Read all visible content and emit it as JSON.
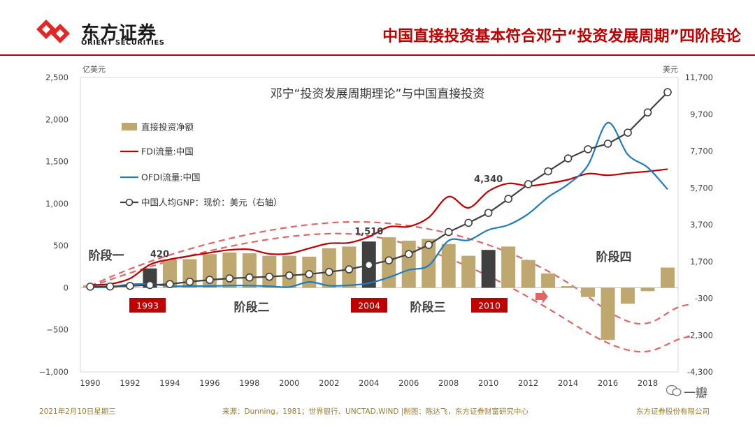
{
  "header": {
    "logo_cn": "东方证券",
    "logo_en": "ORIENT SECURITIES",
    "title": "中国直接投资基本符合邓宁“投资发展周期”四阶段论"
  },
  "footer": {
    "date": "2021年2月10日星期三",
    "source": "来源：Dunning，1981；世界银行、UNCTAD,WIND |制图：陈达飞，东方证券财富研究中心",
    "company": "东方证券股份有限公司",
    "watermark": "一瓣"
  },
  "colors": {
    "brand_red": "#c00000",
    "bar": "#bfa770",
    "bar_highlight": "#404040",
    "fdi": "#c00000",
    "ofdi": "#1f7bc1",
    "gnp": "#404040",
    "stage_curve": "#e06666"
  },
  "chart_data": {
    "type": "bar+line",
    "title": "邓宁“投资发展周期理论”与中国直接投资",
    "y_left_unit": "亿美元",
    "y_right_unit": "美元",
    "ylim_left": [
      -1000,
      2500
    ],
    "ylim_right": [
      -4300,
      11700
    ],
    "y_left_ticks": [
      -1000,
      -500,
      0,
      500,
      1000,
      1500,
      2000,
      2500
    ],
    "y_left_tick_labels": [
      "−1,000",
      "−500",
      "0",
      "500",
      "1,000",
      "1,500",
      "2,000",
      "2,500"
    ],
    "y_right_ticks": [
      -4300,
      -2300,
      -300,
      1700,
      3700,
      5700,
      7700,
      9700,
      11700
    ],
    "y_right_tick_labels": [
      "-4,300",
      "-2,300",
      "-300",
      "1,700",
      "3,700",
      "5,700",
      "7,700",
      "9,700",
      "11,700"
    ],
    "x_tick_labels": [
      "1990",
      "1992",
      "1994",
      "1996",
      "1998",
      "2000",
      "2002",
      "2004",
      "2006",
      "2008",
      "2010",
      "2012",
      "2014",
      "2016",
      "2018"
    ],
    "years": [
      1990,
      1991,
      1992,
      1993,
      1994,
      1995,
      1996,
      1997,
      1998,
      1999,
      2000,
      2001,
      2002,
      2003,
      2004,
      2005,
      2006,
      2007,
      2008,
      2009,
      2010,
      2011,
      2012,
      2013,
      2014,
      2015,
      2016,
      2017,
      2018,
      2019
    ],
    "legend": [
      {
        "key": "net",
        "label": "直接投资净额"
      },
      {
        "key": "fdi",
        "label": "FDI流量:中国"
      },
      {
        "key": "ofdi",
        "label": "OFDI流量:中国"
      },
      {
        "key": "gnp",
        "label": "中国人均GNP：现价：美元（右轴）"
      }
    ],
    "series": [
      {
        "key": "net",
        "type": "bar",
        "values": [
          30,
          10,
          5,
          230,
          330,
          340,
          400,
          420,
          410,
          380,
          380,
          370,
          470,
          490,
          550,
          600,
          560,
          580,
          520,
          380,
          450,
          490,
          330,
          170,
          20,
          -110,
          -620,
          -190,
          -40,
          240
        ],
        "highlight_years": [
          1993,
          2004,
          2010
        ]
      },
      {
        "key": "fdi",
        "type": "line",
        "values": [
          35,
          44,
          110,
          275,
          338,
          378,
          417,
          450,
          456,
          403,
          407,
          469,
          527,
          535,
          606,
          724,
          727,
          835,
          1083,
          950,
          1147,
          1240,
          1211,
          1240,
          1285,
          1356,
          1337,
          1363,
          1383,
          1410
        ]
      },
      {
        "key": "ofdi",
        "type": "line",
        "values": [
          8,
          9,
          40,
          44,
          20,
          20,
          21,
          26,
          26,
          18,
          9,
          69,
          25,
          29,
          55,
          123,
          212,
          265,
          560,
          565,
          688,
          747,
          878,
          1078,
          1231,
          1457,
          1962,
          1583,
          1430,
          1170
        ]
      },
      {
        "key": "gnp",
        "type": "line",
        "axis": "right",
        "values": [
          330,
          340,
          370,
          420,
          470,
          600,
          700,
          780,
          830,
          870,
          940,
          1010,
          1130,
          1270,
          1510,
          1760,
          2100,
          2600,
          3300,
          3800,
          4340,
          5100,
          5900,
          6600,
          7300,
          7800,
          8100,
          8700,
          9800,
          10900
        ]
      }
    ],
    "annotations": [
      {
        "text": "420",
        "year": 1993,
        "y_right": 420
      },
      {
        "text": "1,510",
        "year": 2004,
        "y_right": 1510
      },
      {
        "text": "4,340",
        "year": 2010,
        "y_right": 4340
      }
    ],
    "stage_labels": [
      "阶段一",
      "阶段二",
      "阶段三",
      "阶段四"
    ],
    "year_tags": [
      "1993",
      "2004",
      "2010"
    ]
  }
}
